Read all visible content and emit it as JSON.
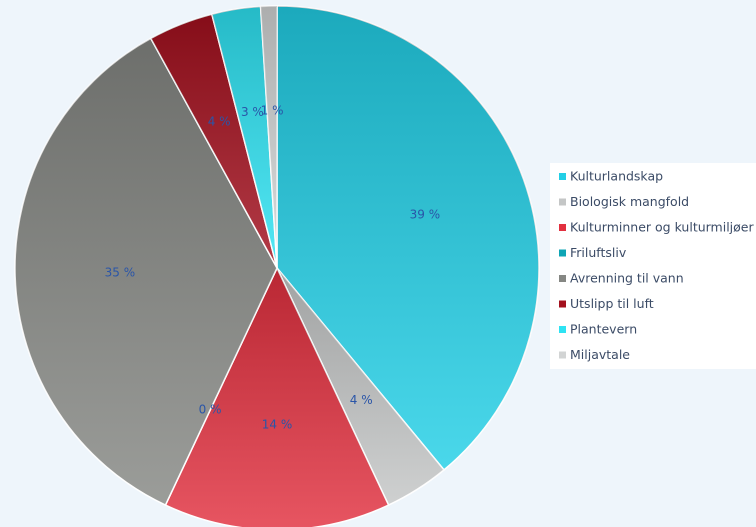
{
  "chart_data": {
    "type": "pie",
    "categories": [
      "Kulturlandskap",
      "Biologisk mangfold",
      "Kulturminner og kulturmiljøer",
      "Friluftsliv",
      "Avrenning til vann",
      "Utslipp til luft",
      "Plantevern",
      "Miljavtale"
    ],
    "values": [
      39,
      4,
      14,
      0,
      35,
      4,
      3,
      1
    ],
    "value_labels": [
      "39 %",
      "4 %",
      "14 %",
      "0 %",
      "35 %",
      "4 %",
      "3 %",
      "1 %"
    ],
    "colors": [
      "#22cfe6",
      "#c4c6c6",
      "#e2303f",
      "#0ea5b5",
      "#858783",
      "#a3101e",
      "#2ee3f3",
      "#d2d4d4"
    ],
    "legend": "right"
  }
}
